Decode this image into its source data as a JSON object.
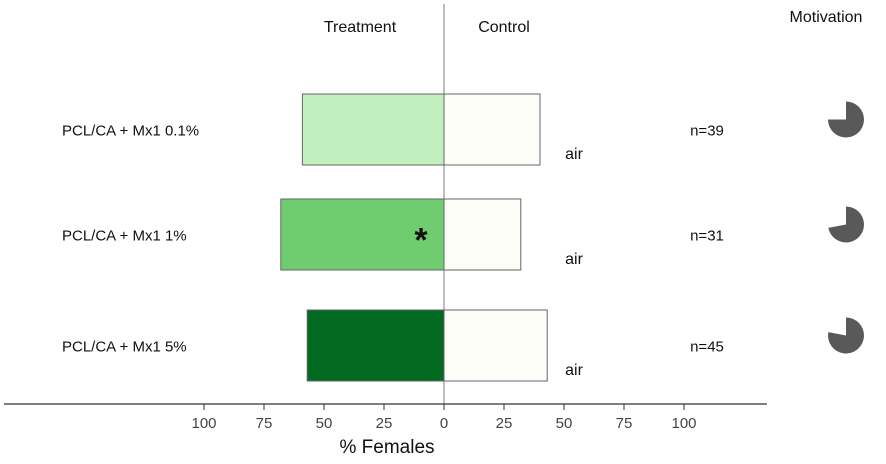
{
  "chart_data": {
    "type": "bar",
    "orientation": "horizontal-diverging",
    "title": "",
    "left_header": "Treatment",
    "right_header": "Control",
    "motivation_header": "Motivation",
    "xlabel": "% Females",
    "x_ticks": [
      "100",
      "75",
      "50",
      "25",
      "0",
      "25",
      "50",
      "75",
      "100"
    ],
    "xlim": [
      -100,
      100
    ],
    "significance_marker": "*",
    "rows": [
      {
        "label": "PCL/CA + Mx1 0.1%",
        "treatment": 59,
        "control": 40,
        "control_label": "air",
        "n_label": "n=39",
        "treatment_color": "#c1f0be",
        "significant": false,
        "motivation": 0.75
      },
      {
        "label": "PCL/CA + Mx1 1%",
        "treatment": 68,
        "control": 32,
        "control_label": "air",
        "n_label": "n=31",
        "treatment_color": "#6fcd6f",
        "significant": true,
        "motivation": 0.72
      },
      {
        "label": "PCL/CA + Mx1 5%",
        "treatment": 57,
        "control": 43,
        "control_label": "air",
        "n_label": "n=45",
        "treatment_color": "#036a21",
        "significant": false,
        "motivation": 0.78
      }
    ],
    "control_color": "#fbfdf6",
    "motivation_color": "#595959"
  }
}
